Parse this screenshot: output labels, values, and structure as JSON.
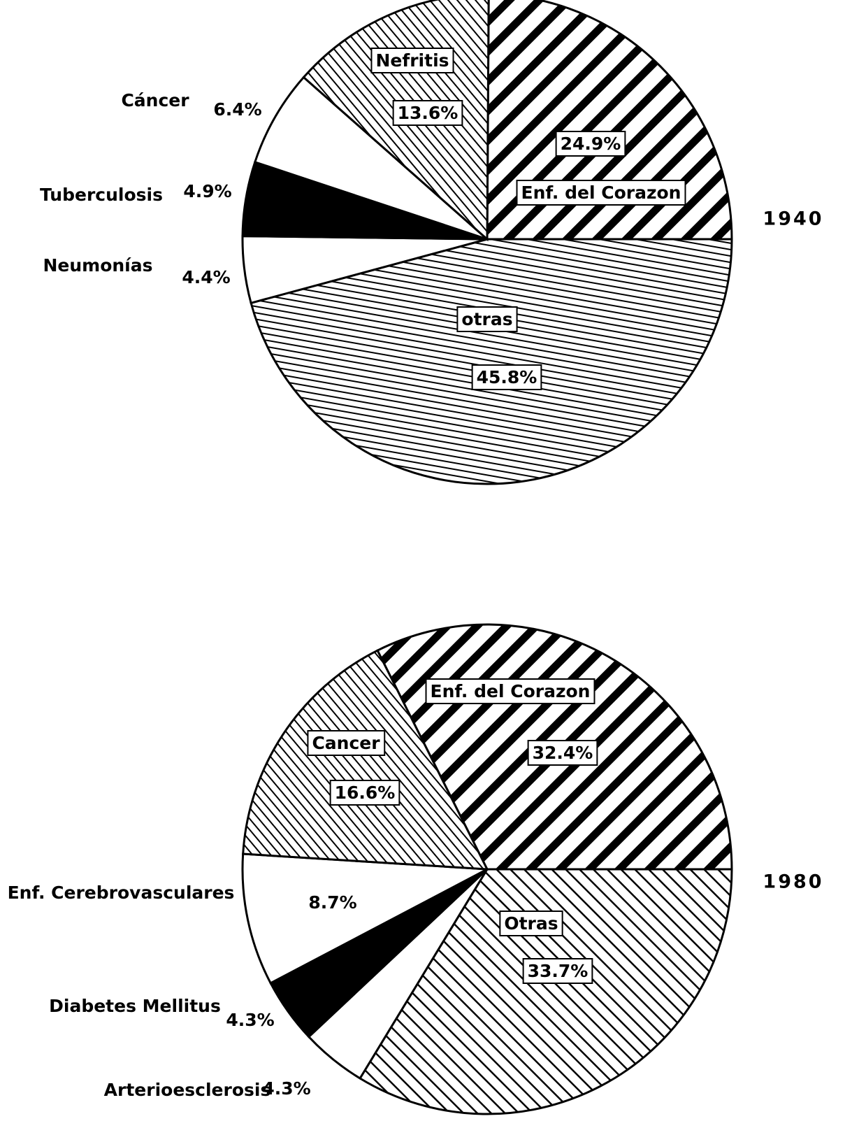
{
  "chart_data": [
    {
      "type": "pie",
      "title": "1940",
      "labels": [
        "Enf. del Corazon",
        "otras",
        "Neumonías",
        "Tuberculosis",
        "Cáncer",
        "Nefritis"
      ],
      "values": [
        24.9,
        45.8,
        4.4,
        4.9,
        6.4,
        13.6
      ],
      "value_labels": [
        "24.9%",
        "45.8%",
        "4.4%",
        "4.9%",
        "6.4%",
        "13.6%"
      ],
      "patterns": [
        "bold-back",
        "fine-flat",
        "white",
        "black",
        "white",
        "fine-forward"
      ]
    },
    {
      "type": "pie",
      "title": "1980",
      "labels": [
        "Enf. del Corazon",
        "Otras",
        "Arterioesclerosis",
        "Diabetes Mellitus",
        "Enf. Cerebrovasculares",
        "Cancer"
      ],
      "values": [
        32.4,
        33.7,
        4.3,
        4.3,
        8.7,
        16.6
      ],
      "value_labels": [
        "32.4%",
        "33.7%",
        "4.3%",
        "4.3%",
        "8.7%",
        "16.6%"
      ],
      "patterns": [
        "bold-back",
        "medium-forward",
        "white",
        "black",
        "white",
        "fine-forward"
      ]
    }
  ]
}
